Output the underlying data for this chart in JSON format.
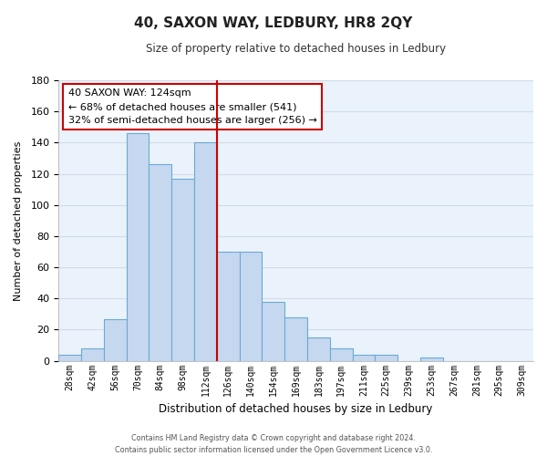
{
  "title": "40, SAXON WAY, LEDBURY, HR8 2QY",
  "subtitle": "Size of property relative to detached houses in Ledbury",
  "xlabel": "Distribution of detached houses by size in Ledbury",
  "ylabel": "Number of detached properties",
  "bar_labels": [
    "28sqm",
    "42sqm",
    "56sqm",
    "70sqm",
    "84sqm",
    "98sqm",
    "112sqm",
    "126sqm",
    "140sqm",
    "154sqm",
    "169sqm",
    "183sqm",
    "197sqm",
    "211sqm",
    "225sqm",
    "239sqm",
    "253sqm",
    "267sqm",
    "281sqm",
    "295sqm",
    "309sqm"
  ],
  "bar_values": [
    4,
    8,
    27,
    146,
    126,
    117,
    140,
    70,
    70,
    38,
    28,
    15,
    8,
    4,
    4,
    0,
    2,
    0,
    0,
    0,
    0
  ],
  "bar_color": "#c5d8f0",
  "bar_edge_color": "#6aaad4",
  "ylim": [
    0,
    180
  ],
  "yticks": [
    0,
    20,
    40,
    60,
    80,
    100,
    120,
    140,
    160,
    180
  ],
  "vline_x": 6.5,
  "vline_color": "#cc0000",
  "annotation_title": "40 SAXON WAY: 124sqm",
  "annotation_line1": "← 68% of detached houses are smaller (541)",
  "annotation_line2": "32% of semi-detached houses are larger (256) →",
  "annotation_box_color": "#ffffff",
  "annotation_box_edge": "#cc0000",
  "footer1": "Contains HM Land Registry data © Crown copyright and database right 2024.",
  "footer2": "Contains public sector information licensed under the Open Government Licence v3.0.",
  "grid_color": "#d0dce8",
  "background_color": "#eaf2fb"
}
